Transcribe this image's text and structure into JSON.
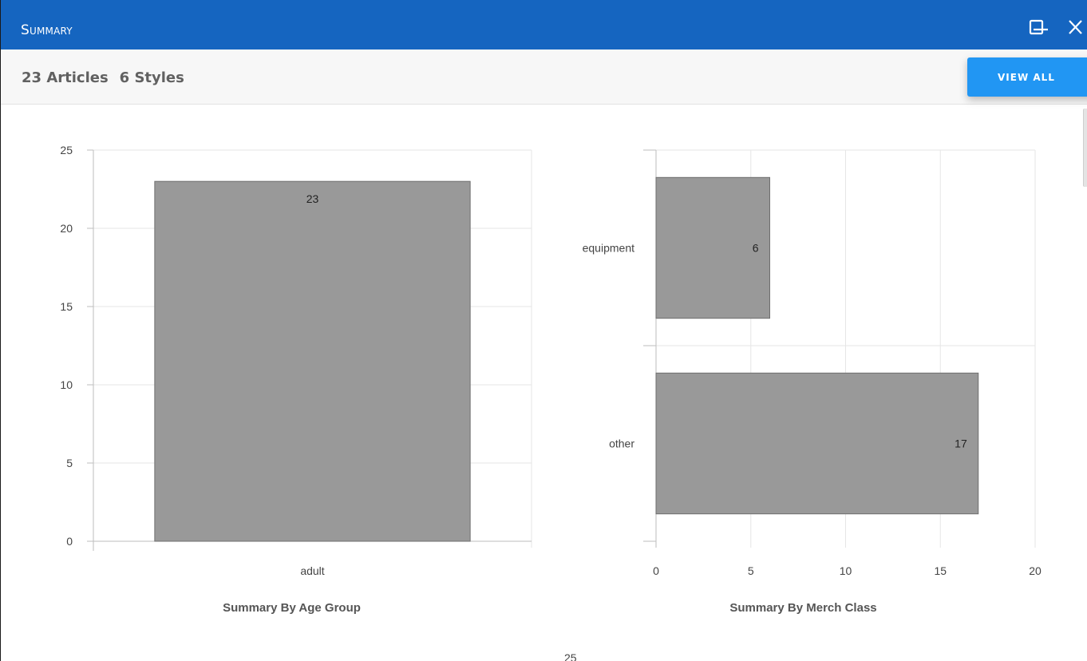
{
  "window": {
    "title": "Summary",
    "minimize_icon": "minimize-icon",
    "maximize_icon": "maximize-icon",
    "close_icon": "close-icon"
  },
  "header": {
    "articles": "23 Articles",
    "styles": "6 Styles",
    "view_all_label": "VIEW ALL",
    "accent_color": "#2196f3",
    "titlebar_color": "#1565c0"
  },
  "chart_data": [
    {
      "type": "bar",
      "orientation": "vertical",
      "title": "Summary By Age Group",
      "categories": [
        "adult"
      ],
      "values": [
        23
      ],
      "data_labels": [
        "23"
      ],
      "ylim": [
        0,
        25
      ],
      "yticks": [
        0,
        5,
        10,
        15,
        20,
        25
      ],
      "grid": true,
      "bar_color": "#999999"
    },
    {
      "type": "bar",
      "orientation": "horizontal",
      "title": "Summary By Merch Class",
      "categories": [
        "equipment",
        "other"
      ],
      "values": [
        6,
        17
      ],
      "data_labels": [
        "6",
        "17"
      ],
      "xlim": [
        0,
        20
      ],
      "xticks": [
        0,
        5,
        10,
        15,
        20
      ],
      "grid": true,
      "bar_color": "#999999"
    }
  ],
  "below_fold": {
    "partial_tick_label": "25"
  }
}
